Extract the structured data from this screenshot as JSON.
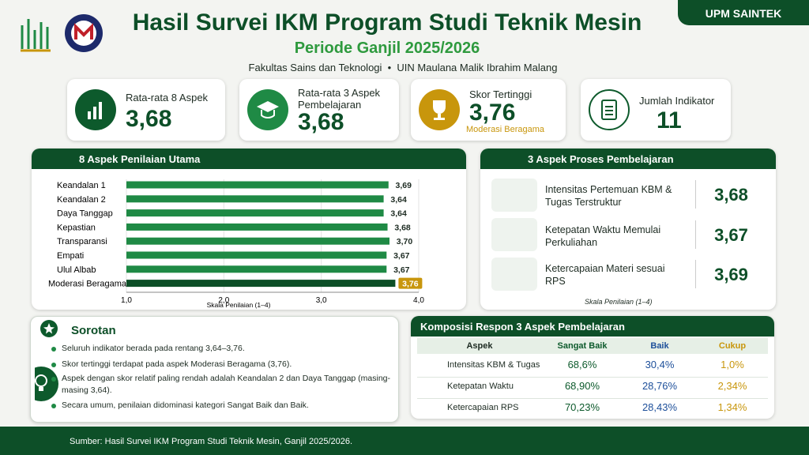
{
  "header": {
    "title": "Hasil Survei IKM Program Studi Teknik Mesin",
    "subtitle": "Periode Ganjil 2025/2026",
    "faculty": "Fakultas Sains dan Teknologi",
    "university": "UIN Maulana Malik Ibrahim Malang",
    "badge": "UPM SAINTEK"
  },
  "cards": [
    {
      "label": "Rata-rata 8 Aspek",
      "value": "3,68"
    },
    {
      "label": "Rata-rata 3 Aspek Pembelajaran",
      "value": "3,68"
    },
    {
      "label": "Skor Tertinggi",
      "value": "3,76",
      "note": "Moderasi Beragama"
    },
    {
      "label": "Jumlah Indikator",
      "value": "11"
    }
  ],
  "chart_data": {
    "type": "bar",
    "orientation": "horizontal",
    "title": "8 Aspek Penilaian Utama",
    "categories": [
      "Keandalan 1",
      "Keandalan 2",
      "Daya Tanggap",
      "Kepastian",
      "Transparansi",
      "Empati",
      "Ulul Albab",
      "Moderasi Beragama"
    ],
    "values": [
      3.69,
      3.64,
      3.64,
      3.68,
      3.7,
      3.67,
      3.67,
      3.76
    ],
    "value_labels": [
      "3,69",
      "3,64",
      "3,64",
      "3,68",
      "3,70",
      "3,67",
      "3,67",
      "3,76"
    ],
    "colors": [
      "#1f8a45",
      "#1f8a45",
      "#1f8a45",
      "#1f8a45",
      "#1f8a45",
      "#1f8a45",
      "#1f8a45",
      "#0c4f27"
    ],
    "value_label_fill": [
      "none",
      "none",
      "none",
      "none",
      "none",
      "none",
      "none",
      "#c8960c"
    ],
    "xlim": [
      1,
      4
    ],
    "xticks": [
      {
        "value": 1,
        "label": "1,0"
      },
      {
        "value": 2,
        "label": "2,0"
      },
      {
        "value": 3,
        "label": "3,0"
      },
      {
        "value": 4,
        "label": "4,0"
      }
    ],
    "xlabel": "Skala Penilaian (1–4)",
    "grid": true
  },
  "proses": {
    "title": "3 Aspek Proses Pembelajaran",
    "items": [
      {
        "label": "Intensitas Pertemuan KBM & Tugas Terstruktur",
        "value": "3,68"
      },
      {
        "label": "Ketepatan Waktu Memulai Perkuliahan",
        "value": "3,67"
      },
      {
        "label": "Ketercapaian Materi sesuai RPS",
        "value": "3,69"
      }
    ],
    "note": "Skala Penilaian (1–4)"
  },
  "sorotan": {
    "title": "Sorotan",
    "items": [
      "Seluruh indikator berada pada rentang 3,64–3,76.",
      "Skor tertinggi terdapat pada aspek Moderasi Beragama (3,76).",
      "Aspek dengan skor relatif paling rendah adalah Keandalan 2 dan Daya Tanggap (masing-masing 3,64).",
      "Secara umum, penilaian didominasi kategori Sangat Baik dan Baik."
    ]
  },
  "komposisi": {
    "title": "Komposisi Respon 3 Aspek Pembelajaran",
    "header": [
      "Aspek",
      "Sangat Baik",
      "Baik",
      "Cukup"
    ],
    "rows": [
      [
        "Intensitas KBM & Tugas",
        "68,6%",
        "30,4%",
        "1,0%"
      ],
      [
        "Ketepatan Waktu",
        "68,90%",
        "28,76%",
        "2,34%"
      ],
      [
        "Ketercapaian RPS",
        "70,23%",
        "28,43%",
        "1,34%"
      ]
    ]
  },
  "footer": "Sumber: Hasil Survei IKM Program Studi Teknik Mesin, Ganjil 2025/2026."
}
